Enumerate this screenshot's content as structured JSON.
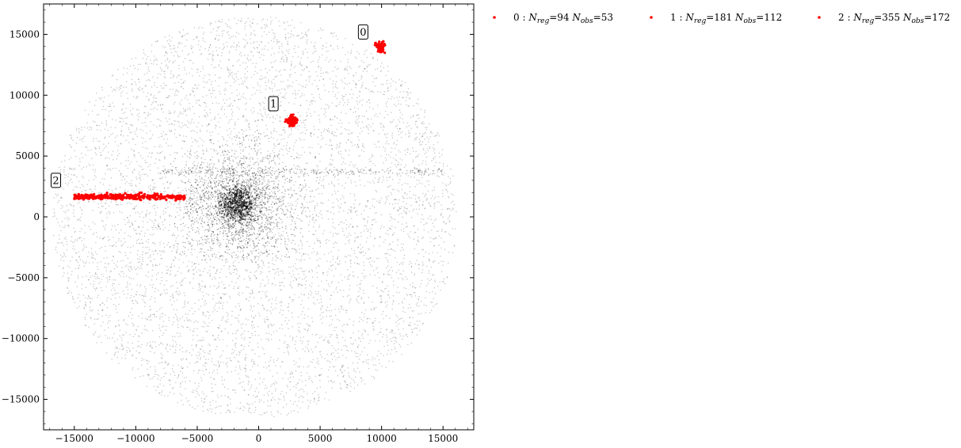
{
  "chart_data": {
    "type": "scatter",
    "title": "",
    "xlabel": "",
    "ylabel": "",
    "xlim": [
      -17500,
      17500
    ],
    "ylim": [
      -17500,
      17500
    ],
    "x_ticks": [
      -15000,
      -10000,
      -5000,
      0,
      5000,
      10000,
      15000
    ],
    "y_ticks": [
      -15000,
      -10000,
      -5000,
      0,
      5000,
      10000,
      15000
    ],
    "tick_labels": {
      "x": [
        "−15000",
        "−10000",
        "−5000",
        "0",
        "5000",
        "10000",
        "15000"
      ],
      "y": [
        "−15000",
        "−10000",
        "−5000",
        "0",
        "5000",
        "10000",
        "15000"
      ]
    },
    "grid": false,
    "legend_position": "right-outside-top",
    "background_points": {
      "description_color": "#000000",
      "count_approx": 9000,
      "extent_radius": 16500,
      "dense_core_center": [
        -1700,
        1000
      ]
    },
    "series": [
      {
        "name": "0 : N_reg=94 N_obs=53",
        "label_parts": {
          "id": "0",
          "nreg": "94",
          "nobs": "53"
        },
        "color": "#ff0000",
        "annotation": "0",
        "annotation_pos": [
          8500,
          15200
        ],
        "points_center": [
          9900,
          13950
        ],
        "points_spread": [
          150,
          200
        ],
        "n_points": 94
      },
      {
        "name": "1 : N_reg=181 N_obs=112",
        "label_parts": {
          "id": "1",
          "nreg": "181",
          "nobs": "112"
        },
        "color": "#ff0000",
        "annotation": "1",
        "annotation_pos": [
          1200,
          9300
        ],
        "points_center": [
          2700,
          7900
        ],
        "points_spread": [
          180,
          180
        ],
        "n_points": 181
      },
      {
        "name": "2 : N_reg=355 N_obs=172",
        "label_parts": {
          "id": "2",
          "nreg": "355",
          "nobs": "172"
        },
        "color": "#ff0000",
        "annotation": "2",
        "annotation_pos": [
          -16500,
          3000
        ],
        "points_x_range": [
          -15000,
          -6000
        ],
        "points_y": 1650,
        "points_spread_y": 120,
        "n_points": 355
      }
    ]
  }
}
